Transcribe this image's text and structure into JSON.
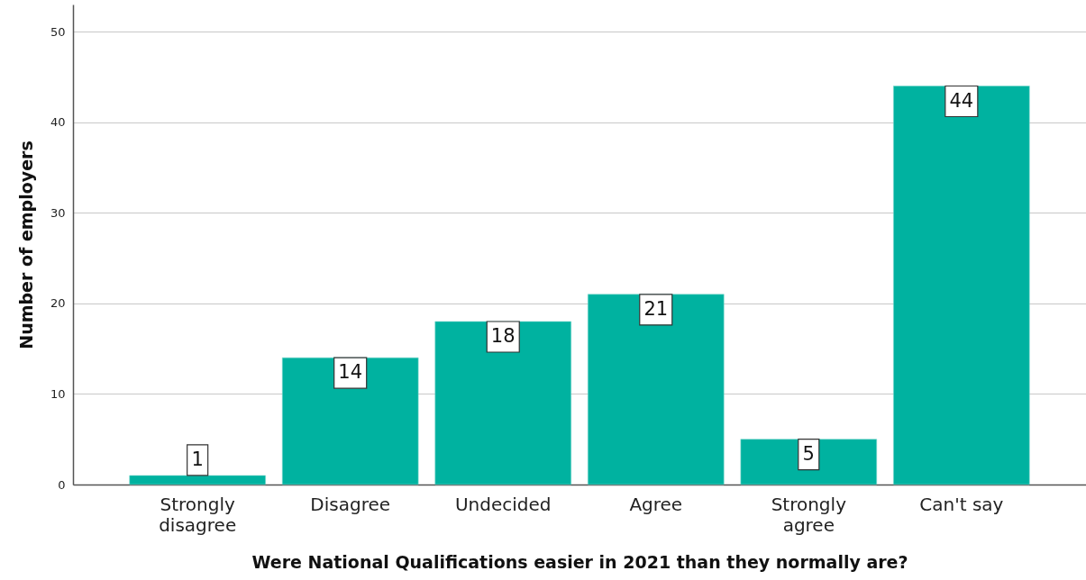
{
  "chart_data": {
    "type": "bar",
    "xlabel": "Were National Qualifications easier in 2021 than they normally are?",
    "ylabel": "Number of employers",
    "categories": [
      "Strongly disagree",
      "Disagree",
      "Undecided",
      "Agree",
      "Strongly agree",
      "Can't say"
    ],
    "values": [
      1,
      14,
      18,
      21,
      5,
      44
    ],
    "color": "#00b2a0",
    "ylim": [
      0,
      53
    ],
    "yticks": [
      0,
      10,
      20,
      30,
      40,
      50
    ],
    "grid": "y",
    "data_labels": true
  }
}
